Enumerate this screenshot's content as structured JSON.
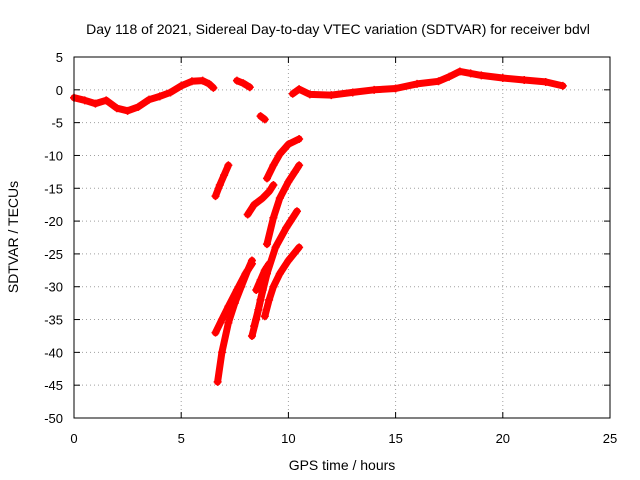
{
  "chart_data": {
    "type": "scatter",
    "title": "Day 118 of 2021, Sidereal Day-to-day VTEC variation (SDTVAR) for receiver bdvl",
    "xlabel": "GPS time / hours",
    "ylabel": "SDTVAR / TECUs",
    "xlim": [
      0,
      25
    ],
    "ylim": [
      -50,
      5
    ],
    "xticks": [
      0,
      5,
      10,
      15,
      20,
      25
    ],
    "yticks": [
      5,
      0,
      -5,
      -10,
      -15,
      -20,
      -25,
      -30,
      -35,
      -40,
      -45,
      -50
    ],
    "grid": true,
    "color": "#ff0000",
    "series": [
      {
        "name": "arc-main-left",
        "points": [
          [
            0,
            -1.2
          ],
          [
            0.5,
            -1.6
          ],
          [
            1,
            -2.1
          ],
          [
            1.5,
            -1.6
          ],
          [
            2,
            -2.8
          ],
          [
            2.5,
            -3.2
          ],
          [
            3,
            -2.6
          ],
          [
            3.5,
            -1.5
          ],
          [
            4,
            -1.0
          ],
          [
            4.5,
            -0.4
          ],
          [
            5,
            0.6
          ],
          [
            5.5,
            1.3
          ],
          [
            6,
            1.4
          ],
          [
            6.3,
            0.9
          ],
          [
            6.5,
            0.3
          ]
        ]
      },
      {
        "name": "arc-short-7h",
        "points": [
          [
            7.6,
            1.4
          ],
          [
            7.9,
            1.0
          ],
          [
            8.2,
            0.4
          ]
        ]
      },
      {
        "name": "arc-blip-9h",
        "points": [
          [
            8.7,
            -4.0
          ],
          [
            8.9,
            -4.5
          ]
        ]
      },
      {
        "name": "arc-main-right",
        "points": [
          [
            10.2,
            -0.6
          ],
          [
            10.5,
            0.1
          ],
          [
            11,
            -0.7
          ],
          [
            12,
            -0.8
          ],
          [
            13,
            -0.4
          ],
          [
            14,
            0.0
          ],
          [
            15,
            0.2
          ],
          [
            16,
            0.9
          ],
          [
            17,
            1.3
          ],
          [
            17.5,
            2.0
          ],
          [
            18,
            2.8
          ],
          [
            18.5,
            2.5
          ],
          [
            19,
            2.2
          ],
          [
            20,
            1.8
          ],
          [
            21,
            1.5
          ],
          [
            22,
            1.2
          ],
          [
            22.8,
            0.6
          ]
        ]
      },
      {
        "name": "arc-a",
        "points": [
          [
            6.6,
            -16.2
          ],
          [
            6.8,
            -14.5
          ],
          [
            7.0,
            -13.0
          ],
          [
            7.2,
            -11.5
          ]
        ]
      },
      {
        "name": "arc-b",
        "points": [
          [
            6.7,
            -44.5
          ],
          [
            6.9,
            -40.0
          ],
          [
            7.2,
            -35.5
          ],
          [
            7.5,
            -32.5
          ],
          [
            7.8,
            -30.0
          ],
          [
            8.1,
            -27.5
          ],
          [
            8.3,
            -26.0
          ]
        ]
      },
      {
        "name": "arc-c",
        "points": [
          [
            6.6,
            -37.0
          ],
          [
            6.9,
            -35.0
          ],
          [
            7.2,
            -33.0
          ],
          [
            7.6,
            -30.5
          ],
          [
            8.0,
            -28.0
          ],
          [
            8.3,
            -26.5
          ]
        ]
      },
      {
        "name": "arc-d",
        "points": [
          [
            8.3,
            -37.5
          ],
          [
            8.5,
            -35.0
          ],
          [
            8.7,
            -32.0
          ],
          [
            9.0,
            -28.0
          ],
          [
            9.4,
            -24.0
          ],
          [
            9.9,
            -21.0
          ],
          [
            10.4,
            -18.5
          ]
        ]
      },
      {
        "name": "arc-e",
        "points": [
          [
            8.4,
            -36.0
          ],
          [
            8.6,
            -33.5
          ],
          [
            8.8,
            -30.5
          ],
          [
            9.0,
            -27.0
          ]
        ]
      },
      {
        "name": "arc-f",
        "points": [
          [
            8.9,
            -34.5
          ],
          [
            9.1,
            -32.0
          ],
          [
            9.3,
            -30.0
          ],
          [
            9.6,
            -28.0
          ],
          [
            10.0,
            -26.0
          ],
          [
            10.5,
            -24.0
          ]
        ]
      },
      {
        "name": "arc-g",
        "points": [
          [
            8.5,
            -30.5
          ],
          [
            8.7,
            -29.0
          ],
          [
            8.9,
            -27.5
          ],
          [
            9.1,
            -26.5
          ]
        ]
      },
      {
        "name": "arc-h",
        "points": [
          [
            9.0,
            -23.5
          ],
          [
            9.3,
            -19.5
          ],
          [
            9.6,
            -16.5
          ],
          [
            10.0,
            -14.0
          ],
          [
            10.3,
            -12.5
          ],
          [
            10.5,
            -11.5
          ]
        ]
      },
      {
        "name": "arc-i",
        "points": [
          [
            8.1,
            -19.0
          ],
          [
            8.4,
            -17.5
          ],
          [
            8.8,
            -16.5
          ],
          [
            9.1,
            -15.5
          ],
          [
            9.3,
            -14.5
          ]
        ]
      },
      {
        "name": "arc-j",
        "points": [
          [
            9.0,
            -13.5
          ],
          [
            9.3,
            -11.5
          ],
          [
            9.6,
            -9.8
          ],
          [
            10.0,
            -8.3
          ],
          [
            10.5,
            -7.5
          ]
        ]
      }
    ]
  }
}
